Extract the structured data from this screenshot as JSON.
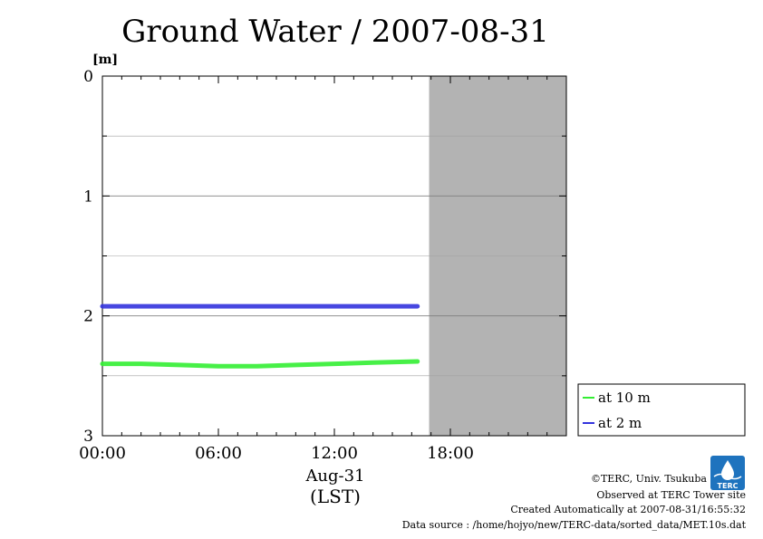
{
  "chart_data": {
    "type": "line",
    "title": "Ground Water / 2007-08-31",
    "ylabel": "[m]",
    "y_inverted": true,
    "ylim": [
      0,
      3
    ],
    "y_ticks": [
      "0",
      "1",
      "2",
      "3"
    ],
    "y_minor_gridlines": [
      0.5,
      1.5,
      2.5
    ],
    "xlim": [
      0,
      24
    ],
    "x_ticks": [
      {
        "value": 0,
        "label": "00:00"
      },
      {
        "value": 6,
        "label": "06:00"
      },
      {
        "value": 12,
        "label": "12:00"
      },
      {
        "value": 18,
        "label": "18:00"
      }
    ],
    "x_date_label": "Aug-31",
    "x_zone_label": "(LST)",
    "no_data_region": [
      16.9,
      24
    ],
    "grid": true,
    "legend_position": "right",
    "series": [
      {
        "name": "at 10 m",
        "color": "#33ee33",
        "x": [
          0,
          2,
          4,
          6,
          7,
          8,
          10,
          12,
          14,
          16.3
        ],
        "y": [
          2.4,
          2.4,
          2.41,
          2.42,
          2.42,
          2.42,
          2.41,
          2.4,
          2.39,
          2.38
        ]
      },
      {
        "name": "at 2 m",
        "color": "#3333dd",
        "x": [
          0,
          4,
          8,
          12,
          16.3
        ],
        "y": [
          1.92,
          1.92,
          1.92,
          1.92,
          1.92
        ]
      }
    ]
  },
  "credits": {
    "copyright": "©TERC, Univ. Tsukuba",
    "observed": "Observed at TERC Tower site",
    "created": "Created Automatically at 2007-08-31/16:55:32",
    "source": "Data source : /home/hojyo/new/TERC-data/sorted_data/MET.10s.dat",
    "logo_text": "TERC"
  }
}
